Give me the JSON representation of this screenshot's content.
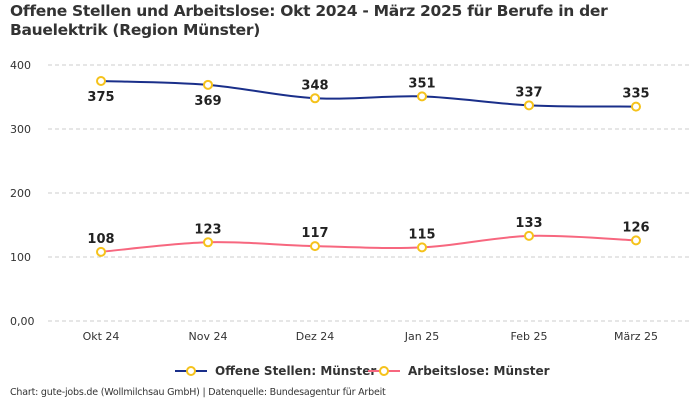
{
  "chart_data": {
    "type": "line",
    "title": "Offene Stellen und Arbeitslose: Okt 2024 - März 2025 für Berufe in der Bauelektrik (Region Münster)",
    "categories": [
      "Okt 24",
      "Nov 24",
      "Dez 24",
      "Jan 25",
      "Feb 25",
      "März 25"
    ],
    "series": [
      {
        "name": "Offene Stellen: Münster",
        "values": [
          375,
          369,
          348,
          351,
          337,
          335
        ],
        "color": "#1a2f8a",
        "label_below": [
          true,
          true,
          false,
          false,
          false,
          false
        ]
      },
      {
        "name": "Arbeitslose: Münster",
        "values": [
          108,
          123,
          117,
          115,
          133,
          126
        ],
        "color": "#f7677f",
        "label_below": [
          false,
          false,
          false,
          false,
          false,
          false
        ]
      }
    ],
    "marker_color": "#f5c21b",
    "ylim": [
      0,
      400
    ],
    "yticks": [
      0,
      100,
      200,
      300,
      400
    ],
    "ytick_labels": [
      "0,00",
      "100",
      "200",
      "300",
      "400"
    ],
    "grid": true,
    "legend": "bottom-center",
    "footer": "Chart: gute-jobs.de (Wollmilchsau GmbH) | Datenquelle: Bundesagentur für Arbeit"
  }
}
